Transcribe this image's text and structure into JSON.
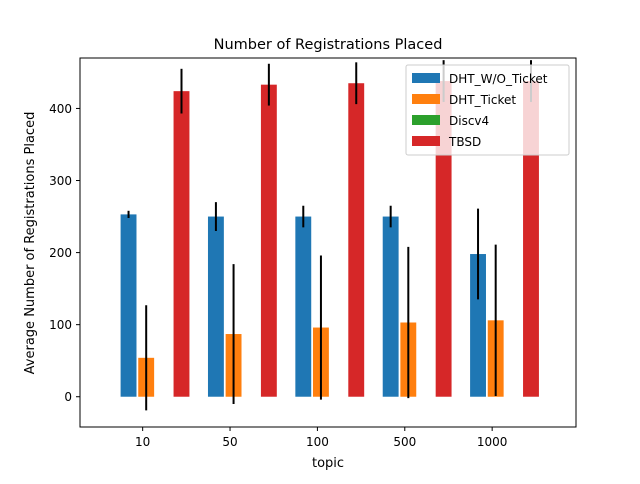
{
  "chart_data": {
    "type": "bar",
    "title": "Number of Registrations Placed",
    "xlabel": "topic",
    "ylabel": "Average Number of Registrations Placed",
    "categories": [
      "10",
      "50",
      "100",
      "500",
      "1000"
    ],
    "yticks": [
      0,
      100,
      200,
      300,
      400
    ],
    "ylim": [
      -42,
      470
    ],
    "grid": false,
    "legend_position": "top-right",
    "series": [
      {
        "name": "DHT_W/O_Ticket",
        "color": "#1f77b4",
        "values": [
          253,
          250,
          250,
          250,
          198
        ],
        "errors": [
          5,
          20,
          15,
          15,
          63
        ]
      },
      {
        "name": "DHT_Ticket",
        "color": "#ff7f0e",
        "values": [
          54,
          87,
          96,
          103,
          106
        ],
        "errors": [
          73,
          97,
          100,
          105,
          105
        ]
      },
      {
        "name": "Discv4",
        "color": "#2ca02c",
        "values": [
          0,
          0,
          0,
          0,
          0
        ],
        "errors": [
          0,
          0,
          0,
          0,
          0
        ]
      },
      {
        "name": "TBSD",
        "color": "#d62728",
        "values": [
          424,
          433,
          435,
          438,
          438
        ],
        "errors": [
          31,
          29,
          29,
          29,
          29
        ]
      }
    ]
  }
}
